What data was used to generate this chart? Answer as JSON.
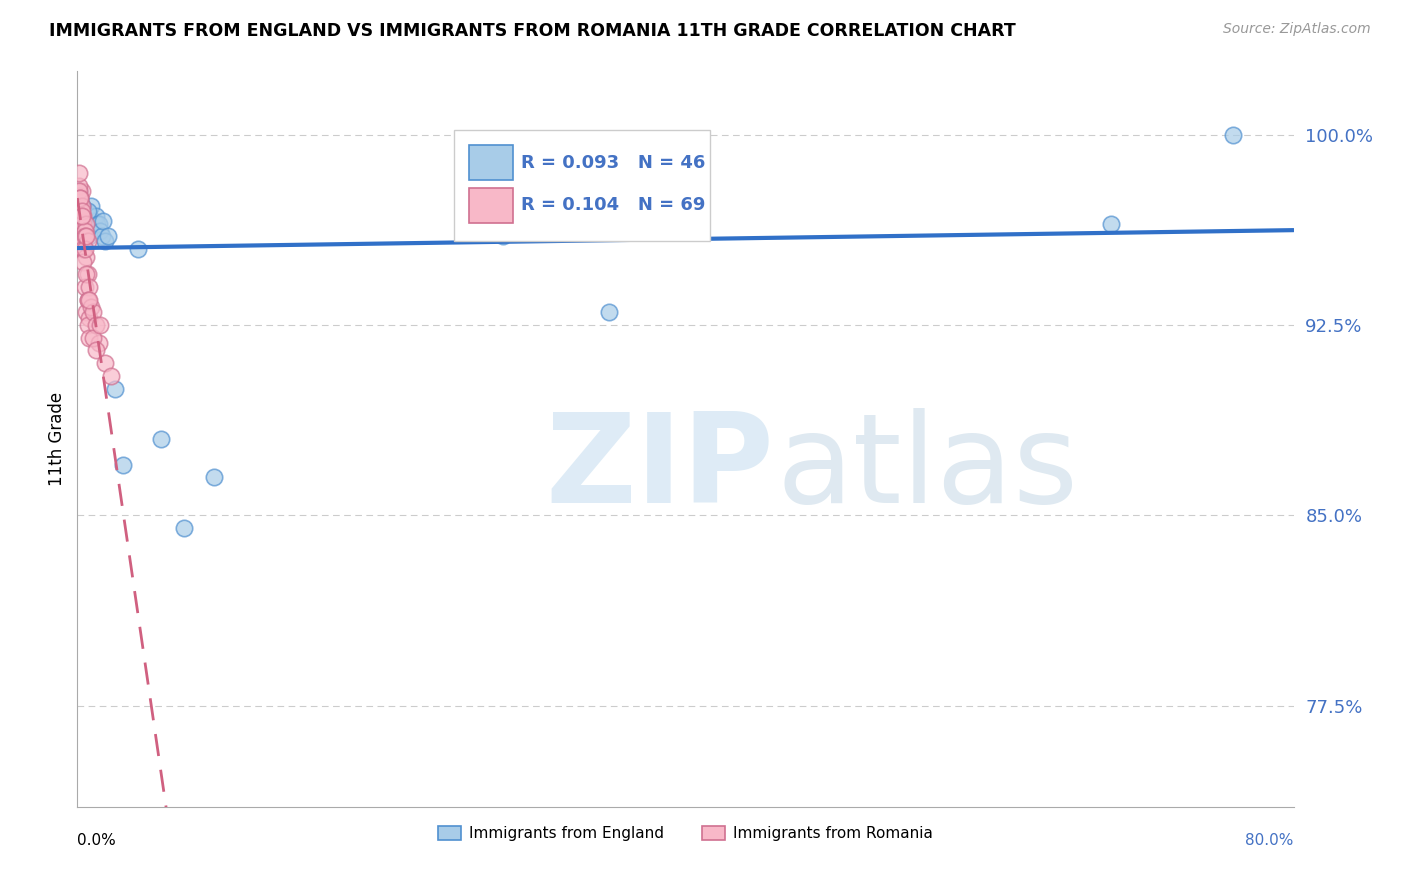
{
  "title": "IMMIGRANTS FROM ENGLAND VS IMMIGRANTS FROM ROMANIA 11TH GRADE CORRELATION CHART",
  "source": "Source: ZipAtlas.com",
  "ylabel": "11th Grade",
  "R_england": 0.093,
  "N_england": 46,
  "R_romania": 0.104,
  "N_romania": 69,
  "color_england_fill": "#a8cce8",
  "color_england_edge": "#5090d0",
  "color_romania_fill": "#f8b8c8",
  "color_romania_edge": "#d07090",
  "color_line_england": "#3070c8",
  "color_line_romania": "#d06080",
  "color_ytick": "#4472c4",
  "y_ticks": [
    0.775,
    0.85,
    0.925,
    1.0
  ],
  "y_tick_labels": [
    "77.5%",
    "85.0%",
    "92.5%",
    "100.0%"
  ],
  "xlim": [
    0.0,
    0.8
  ],
  "ylim": [
    0.735,
    1.025
  ],
  "legend_england": "Immigrants from England",
  "legend_romania": "Immigrants from Romania",
  "grid_color": "#cccccc",
  "eng_x": [
    0.001,
    0.002,
    0.001,
    0.003,
    0.002,
    0.001,
    0.004,
    0.002,
    0.003,
    0.001,
    0.005,
    0.002,
    0.001,
    0.003,
    0.004,
    0.002,
    0.006,
    0.007,
    0.008,
    0.009,
    0.01,
    0.011,
    0.012,
    0.013,
    0.007,
    0.008,
    0.003,
    0.005,
    0.004,
    0.002,
    0.014,
    0.015,
    0.016,
    0.017,
    0.018,
    0.02,
    0.025,
    0.03,
    0.04,
    0.055,
    0.07,
    0.09,
    0.28,
    0.35,
    0.68,
    0.76
  ],
  "eng_y": [
    0.975,
    0.97,
    0.968,
    0.972,
    0.965,
    0.978,
    0.96,
    0.973,
    0.967,
    0.962,
    0.97,
    0.964,
    0.976,
    0.96,
    0.965,
    0.968,
    0.97,
    0.965,
    0.968,
    0.972,
    0.962,
    0.966,
    0.968,
    0.965,
    0.97,
    0.96,
    0.972,
    0.965,
    0.958,
    0.975,
    0.965,
    0.962,
    0.96,
    0.966,
    0.958,
    0.96,
    0.9,
    0.87,
    0.955,
    0.88,
    0.845,
    0.865,
    0.96,
    0.93,
    0.965,
    1.0
  ],
  "rom_x": [
    0.001,
    0.001,
    0.002,
    0.001,
    0.002,
    0.001,
    0.003,
    0.002,
    0.001,
    0.002,
    0.003,
    0.001,
    0.002,
    0.001,
    0.003,
    0.002,
    0.001,
    0.004,
    0.002,
    0.003,
    0.001,
    0.002,
    0.003,
    0.004,
    0.002,
    0.003,
    0.001,
    0.002,
    0.004,
    0.003,
    0.005,
    0.002,
    0.003,
    0.004,
    0.005,
    0.003,
    0.004,
    0.005,
    0.006,
    0.004,
    0.005,
    0.003,
    0.004,
    0.005,
    0.006,
    0.007,
    0.004,
    0.005,
    0.006,
    0.007,
    0.005,
    0.006,
    0.007,
    0.008,
    0.006,
    0.007,
    0.008,
    0.009,
    0.007,
    0.008,
    0.01,
    0.012,
    0.014,
    0.01,
    0.012,
    0.015,
    0.018,
    0.022,
    0.008
  ],
  "rom_y": [
    0.975,
    0.97,
    0.968,
    0.965,
    0.972,
    0.96,
    0.978,
    0.964,
    0.976,
    0.97,
    0.958,
    0.975,
    0.962,
    0.98,
    0.965,
    0.968,
    0.972,
    0.955,
    0.97,
    0.96,
    0.978,
    0.965,
    0.955,
    0.968,
    0.975,
    0.96,
    0.985,
    0.958,
    0.965,
    0.972,
    0.96,
    0.975,
    0.968,
    0.955,
    0.962,
    0.97,
    0.955,
    0.96,
    0.965,
    0.958,
    0.962,
    0.968,
    0.955,
    0.96,
    0.952,
    0.958,
    0.95,
    0.955,
    0.96,
    0.945,
    0.94,
    0.945,
    0.935,
    0.94,
    0.93,
    0.935,
    0.928,
    0.932,
    0.925,
    0.92,
    0.93,
    0.925,
    0.918,
    0.92,
    0.915,
    0.925,
    0.91,
    0.905,
    0.935
  ]
}
